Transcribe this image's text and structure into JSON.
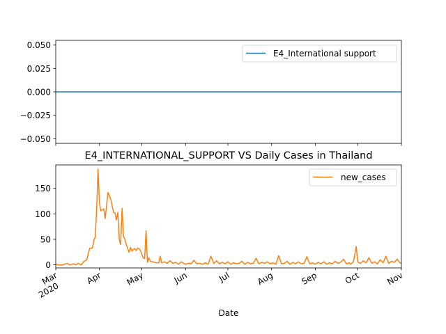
{
  "chart_data": [
    {
      "type": "line",
      "title": "",
      "xlabel": "",
      "ylabel": "",
      "ylim": [
        -0.055,
        0.055
      ],
      "yticks": [
        "0.050",
        "0.025",
        "0.000",
        "−0.025",
        "−0.050"
      ],
      "yticks_values": [
        0.05,
        0.025,
        0.0,
        -0.025,
        -0.05
      ],
      "grid": false,
      "legend_position": "upper right",
      "series": [
        {
          "name": "E4_International support",
          "color": "#1f77b4",
          "values": [
            0,
            0
          ]
        }
      ],
      "x": [
        "2020-03-01",
        "2020-11-01"
      ]
    },
    {
      "type": "line",
      "title": "E4_INTERNATIONAL_SUPPORT VS Daily Cases in Thailand",
      "xlabel": "Date",
      "ylabel": "",
      "ylim": [
        -6,
        196
      ],
      "yticks": [
        "0",
        "50",
        "100",
        "150"
      ],
      "yticks_values": [
        0,
        50,
        100,
        150
      ],
      "xticks": [
        {
          "label": "Mar",
          "date": "2020-03-01"
        },
        {
          "label": "Apr",
          "date": "2020-04-01"
        },
        {
          "label": "May",
          "date": "2020-05-01"
        },
        {
          "label": "Jun",
          "date": "2020-06-01"
        },
        {
          "label": "Jul",
          "date": "2020-07-01"
        },
        {
          "label": "Aug",
          "date": "2020-08-01"
        },
        {
          "label": "Sep",
          "date": "2020-09-01"
        },
        {
          "label": "Oct",
          "date": "2020-10-01"
        },
        {
          "label": "Nov",
          "date": "2020-11-01"
        }
      ],
      "year_label": "2020",
      "grid": false,
      "legend_position": "upper right",
      "series": [
        {
          "name": "new_cases",
          "color": "#ff7f0e",
          "points": [
            [
              "2020-03-01",
              1
            ],
            [
              "2020-03-03",
              0
            ],
            [
              "2020-03-06",
              0
            ],
            [
              "2020-03-09",
              3
            ],
            [
              "2020-03-11",
              0
            ],
            [
              "2020-03-14",
              2
            ],
            [
              "2020-03-15",
              0
            ],
            [
              "2020-03-17",
              3
            ],
            [
              "2020-03-19",
              0
            ],
            [
              "2020-03-21",
              7
            ],
            [
              "2020-03-23",
              10
            ],
            [
              "2020-03-25",
              32
            ],
            [
              "2020-03-27",
              33
            ],
            [
              "2020-03-28",
              48
            ],
            [
              "2020-03-29",
              55
            ],
            [
              "2020-03-30",
              110
            ],
            [
              "2020-03-31",
              188
            ],
            [
              "2020-04-01",
              120
            ],
            [
              "2020-04-02",
              106
            ],
            [
              "2020-04-04",
              110
            ],
            [
              "2020-04-05",
              91
            ],
            [
              "2020-04-06",
              115
            ],
            [
              "2020-04-07",
              142
            ],
            [
              "2020-04-08",
              136
            ],
            [
              "2020-04-09",
              128
            ],
            [
              "2020-04-10",
              115
            ],
            [
              "2020-04-11",
              103
            ],
            [
              "2020-04-12",
              102
            ],
            [
              "2020-04-13",
              88
            ],
            [
              "2020-04-14",
              103
            ],
            [
              "2020-04-15",
              50
            ],
            [
              "2020-04-16",
              40
            ],
            [
              "2020-04-17",
              111
            ],
            [
              "2020-04-18",
              56
            ],
            [
              "2020-04-19",
              50
            ],
            [
              "2020-04-20",
              40
            ],
            [
              "2020-04-21",
              32
            ],
            [
              "2020-04-22",
              25
            ],
            [
              "2020-04-23",
              34
            ],
            [
              "2020-04-24",
              27
            ],
            [
              "2020-04-25",
              30
            ],
            [
              "2020-04-26",
              32
            ],
            [
              "2020-04-27",
              28
            ],
            [
              "2020-04-28",
              33
            ],
            [
              "2020-04-29",
              32
            ],
            [
              "2020-04-30",
              28
            ],
            [
              "2020-05-01",
              20
            ],
            [
              "2020-05-02",
              14
            ],
            [
              "2020-05-03",
              12
            ],
            [
              "2020-05-04",
              67
            ],
            [
              "2020-05-05",
              5
            ],
            [
              "2020-05-06",
              14
            ],
            [
              "2020-05-07",
              7
            ],
            [
              "2020-05-08",
              6
            ],
            [
              "2020-05-09",
              6
            ],
            [
              "2020-05-11",
              4
            ],
            [
              "2020-05-13",
              4
            ],
            [
              "2020-05-14",
              17
            ],
            [
              "2020-05-15",
              4
            ],
            [
              "2020-05-17",
              6
            ],
            [
              "2020-05-19",
              3
            ],
            [
              "2020-05-21",
              8
            ],
            [
              "2020-05-23",
              3
            ],
            [
              "2020-05-25",
              5
            ],
            [
              "2020-05-27",
              1
            ],
            [
              "2020-05-29",
              6
            ],
            [
              "2020-06-01",
              1
            ],
            [
              "2020-06-03",
              3
            ],
            [
              "2020-06-05",
              2
            ],
            [
              "2020-06-07",
              9
            ],
            [
              "2020-06-09",
              2
            ],
            [
              "2020-06-11",
              3
            ],
            [
              "2020-06-13",
              1
            ],
            [
              "2020-06-15",
              4
            ],
            [
              "2020-06-17",
              1
            ],
            [
              "2020-06-19",
              17
            ],
            [
              "2020-06-21",
              3
            ],
            [
              "2020-06-23",
              8
            ],
            [
              "2020-06-25",
              2
            ],
            [
              "2020-06-27",
              5
            ],
            [
              "2020-06-29",
              2
            ],
            [
              "2020-07-01",
              6
            ],
            [
              "2020-07-03",
              1
            ],
            [
              "2020-07-05",
              4
            ],
            [
              "2020-07-07",
              2
            ],
            [
              "2020-07-09",
              3
            ],
            [
              "2020-07-11",
              7
            ],
            [
              "2020-07-13",
              1
            ],
            [
              "2020-07-15",
              5
            ],
            [
              "2020-07-17",
              2
            ],
            [
              "2020-07-19",
              3
            ],
            [
              "2020-07-21",
              13
            ],
            [
              "2020-07-23",
              2
            ],
            [
              "2020-07-25",
              5
            ],
            [
              "2020-07-27",
              3
            ],
            [
              "2020-07-29",
              6
            ],
            [
              "2020-07-31",
              2
            ],
            [
              "2020-08-02",
              4
            ],
            [
              "2020-08-04",
              1
            ],
            [
              "2020-08-06",
              18
            ],
            [
              "2020-08-08",
              2
            ],
            [
              "2020-08-10",
              3
            ],
            [
              "2020-08-12",
              7
            ],
            [
              "2020-08-14",
              1
            ],
            [
              "2020-08-16",
              5
            ],
            [
              "2020-08-18",
              2
            ],
            [
              "2020-08-20",
              6
            ],
            [
              "2020-08-22",
              2
            ],
            [
              "2020-08-24",
              3
            ],
            [
              "2020-08-26",
              16
            ],
            [
              "2020-08-28",
              2
            ],
            [
              "2020-08-30",
              4
            ],
            [
              "2020-09-01",
              1
            ],
            [
              "2020-09-03",
              5
            ],
            [
              "2020-09-05",
              2
            ],
            [
              "2020-09-07",
              6
            ],
            [
              "2020-09-09",
              1
            ],
            [
              "2020-09-11",
              4
            ],
            [
              "2020-09-13",
              2
            ],
            [
              "2020-09-15",
              7
            ],
            [
              "2020-09-17",
              3
            ],
            [
              "2020-09-19",
              5
            ],
            [
              "2020-09-21",
              11
            ],
            [
              "2020-09-23",
              2
            ],
            [
              "2020-09-25",
              4
            ],
            [
              "2020-09-26",
              1
            ],
            [
              "2020-09-28",
              6
            ],
            [
              "2020-09-30",
              36
            ],
            [
              "2020-10-01",
              6
            ],
            [
              "2020-10-03",
              3
            ],
            [
              "2020-10-05",
              8
            ],
            [
              "2020-10-07",
              4
            ],
            [
              "2020-10-09",
              14
            ],
            [
              "2020-10-11",
              3
            ],
            [
              "2020-10-13",
              6
            ],
            [
              "2020-10-15",
              2
            ],
            [
              "2020-10-17",
              10
            ],
            [
              "2020-10-19",
              4
            ],
            [
              "2020-10-21",
              17
            ],
            [
              "2020-10-23",
              3
            ],
            [
              "2020-10-25",
              7
            ],
            [
              "2020-10-27",
              5
            ],
            [
              "2020-10-29",
              11
            ],
            [
              "2020-10-31",
              4
            ],
            [
              "2020-11-01",
              3
            ]
          ]
        }
      ]
    }
  ]
}
